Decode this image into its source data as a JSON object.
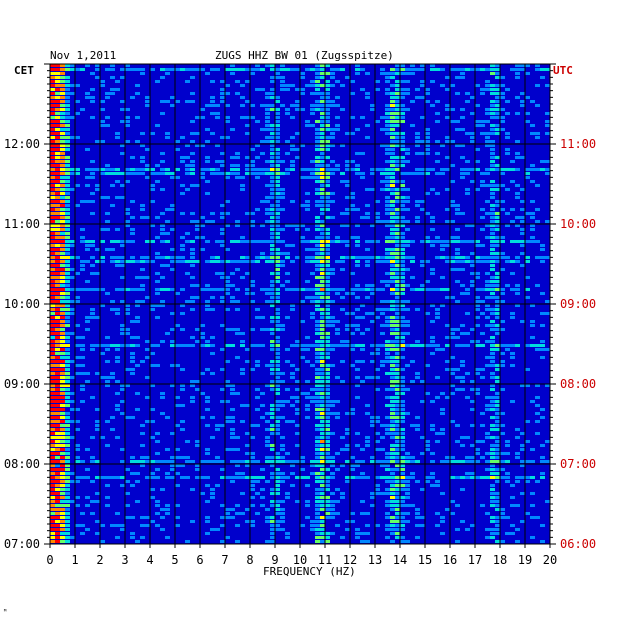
{
  "header": {
    "date": "Nov 1,2011",
    "title": "ZUGS HHZ BW 01 (Zugsspitze)",
    "left_axis_label": "CET",
    "right_axis_label": "UTC",
    "footer_mark": "ᴹ"
  },
  "colors": {
    "background": "#0000cc",
    "accent_left_axis": "#000000",
    "accent_right_axis": "#cc0000",
    "grid": "#000000"
  },
  "chart_data": {
    "type": "heatmap",
    "title": "ZUGS HHZ BW 01 (Zugsspitze)",
    "xlabel": "FREQUENCY (HZ)",
    "x_ticks": [
      "0",
      "1",
      "2",
      "3",
      "4",
      "5",
      "6",
      "7",
      "8",
      "9",
      "10",
      "11",
      "12",
      "13",
      "14",
      "15",
      "16",
      "17",
      "18",
      "19",
      "20"
    ],
    "xlim": [
      0,
      20
    ],
    "y_ticks_cet": [
      "12:00",
      "11:00",
      "10:00",
      "09:00",
      "08:00",
      "07:00"
    ],
    "y_ticks_utc": [
      "11:00",
      "10:00",
      "09:00",
      "08:00",
      "07:00",
      "06:00"
    ],
    "ylim_cet": [
      "07:00",
      "13:00"
    ],
    "grid": true,
    "color_scale": [
      "#0000aa",
      "#0022ee",
      "#0088ff",
      "#00dddd",
      "#66ff66",
      "#ffff00",
      "#ff8800",
      "#ff0000"
    ],
    "dominant_bands_hz": [
      0.2,
      0.5,
      9.0,
      10.8,
      11.0,
      13.7,
      14.0,
      17.8
    ]
  }
}
